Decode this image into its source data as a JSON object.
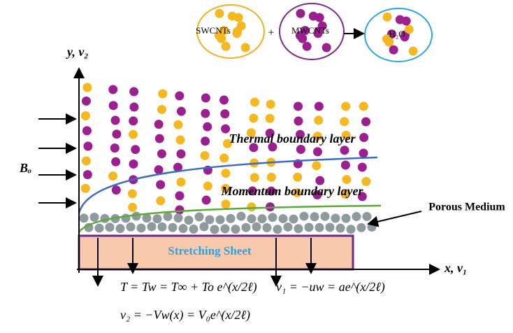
{
  "nanofluid": {
    "swcnt": "SWCNTs",
    "plus": "+",
    "mwcnt": "MWCNTs",
    "water": "H₂O"
  },
  "axes": {
    "y_label": "y, v₂",
    "x_label": "x, v₁",
    "field_label": "Bₒ"
  },
  "layers": {
    "thermal": "Thermal boundary layer",
    "momentum": "Momentum boundary layer",
    "porous": "Porous Medium",
    "sheet": "Stretching Sheet"
  },
  "equations": [
    "T = Tw = T∞ + To e^(x/2ℓ)",
    "v₁ = −uw = ae^(x/2ℓ)",
    "v₂ = −Vw(x) = V₀e^(x/2ℓ)"
  ]
}
